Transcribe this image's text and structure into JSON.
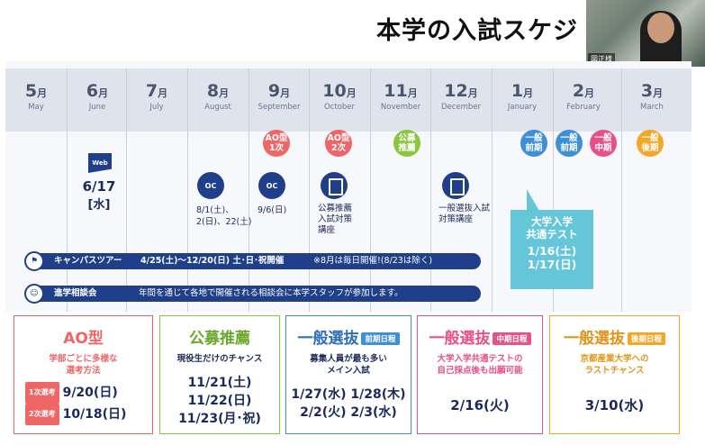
{
  "header": {
    "title": "本学の入試スケジ",
    "video_label": "図正様"
  },
  "months": [
    {
      "num": "5",
      "unit": "月",
      "en": "May"
    },
    {
      "num": "6",
      "unit": "月",
      "en": "June"
    },
    {
      "num": "7",
      "unit": "月",
      "en": "July"
    },
    {
      "num": "8",
      "unit": "月",
      "en": "August"
    },
    {
      "num": "9",
      "unit": "月",
      "en": "September"
    },
    {
      "num": "10",
      "unit": "月",
      "en": "October"
    },
    {
      "num": "11",
      "unit": "月",
      "en": "November"
    },
    {
      "num": "12",
      "unit": "月",
      "en": "December"
    },
    {
      "num": "1",
      "unit": "月",
      "en": "January"
    },
    {
      "num": "2",
      "unit": "月",
      "en": "February"
    },
    {
      "num": "3",
      "unit": "月",
      "en": "March"
    }
  ],
  "badges": {
    "ao1": "AO型 1次",
    "ao2": "AO型 2次",
    "koubo": "公募 推薦",
    "ippan_zenki_jan": "一般 前期",
    "ippan_zenki_feb": "一般 前期",
    "ippan_chuki": "一般 中期",
    "ippan_kouki": "一般 後期"
  },
  "events": {
    "web_label": "Web",
    "web_date": "6/17",
    "web_day": "[水]",
    "oc_label": "OC",
    "oc_aug_line1": "8/1(土)、",
    "oc_aug_line2": "2(日)、22(土)",
    "oc_sep": "9/6(日)",
    "koubo_course_line1": "公募推薦",
    "koubo_course_line2": "入試対策",
    "koubo_course_line3": "講座",
    "ippan_course_line1": "一般選抜入試",
    "ippan_course_line2": "対策講座"
  },
  "kyotsu": {
    "title_line1": "大学入学",
    "title_line2": "共通テスト",
    "date1": "1/16(土)",
    "date2": "1/17(日)"
  },
  "bars": {
    "campus_tour_label": "キャンパスツアー",
    "campus_tour_dates": "4/25(土)〜12/20(日) 土･日･祝開催",
    "campus_tour_note": "※8月は毎日開催!(8/23は除く)",
    "consult_label": "進学相談会",
    "consult_text": "年間を通じて各地で開催される相談会に本学スタッフが参加します。"
  },
  "cards": {
    "ao": {
      "title": "AO型",
      "sub1": "学部ごとに多様な",
      "sub2": "選考方法",
      "tag1": "1次選考",
      "date1": "9/20(日)",
      "tag2": "2次選考",
      "date2": "10/18(日)"
    },
    "koubo": {
      "title": "公募推薦",
      "sub1": "現役生だけのチャンス",
      "date1": "11/21(土)",
      "date2": "11/22(日)",
      "date3": "11/23(月･祝)"
    },
    "zenki": {
      "title": "一般選抜",
      "tag": "前期日程",
      "sub1": "募集人員が最も多い",
      "sub2": "メイン入試",
      "date1": "1/27(水) 1/28(木)",
      "date2": "2/2(火) 2/3(水)"
    },
    "chuki": {
      "title": "一般選抜",
      "tag": "中期日程",
      "sub1": "大学入学共通テストの",
      "sub2": "自己採点後も出願可能",
      "date1": "2/16(火)"
    },
    "kouki": {
      "title": "一般選抜",
      "tag": "後期日程",
      "sub1": "京都産業大学への",
      "sub2": "ラストチャンス",
      "date1": "3/10(水)"
    }
  },
  "colors": {
    "navy": "#1f3f8a",
    "ao_red": "#ee6666",
    "koubo_green": "#8cc63f",
    "zenki_blue": "#3d8fd6",
    "chuki_pink": "#e8508a",
    "kouki_orange": "#f3a825",
    "kyotsu_teal": "#65c6d9"
  },
  "icons": {
    "web": "web-flag-icon",
    "oc": "megaphone-icon",
    "course": "document-pen-icon",
    "tour": "flag-icon",
    "consult": "people-icon",
    "video": "webcam-participant"
  }
}
